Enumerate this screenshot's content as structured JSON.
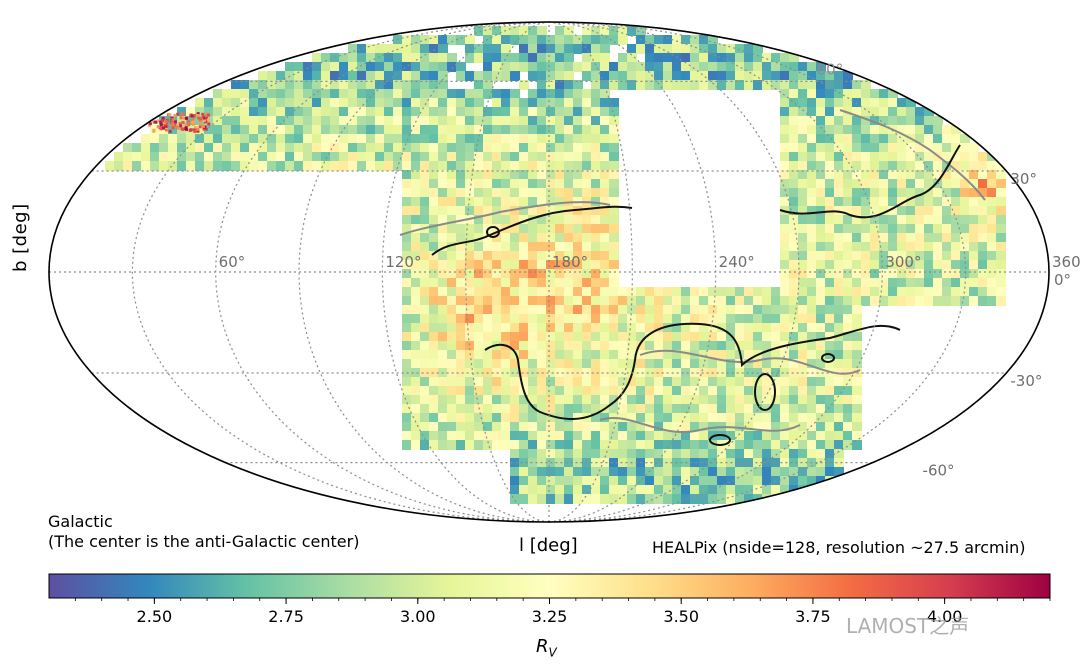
{
  "chart_data": {
    "type": "heatmap",
    "projection": "Mollweide (all-sky, Galactic coordinates)",
    "ylabel": "b [deg]",
    "xlabel": "l [deg]",
    "annotation_left": [
      "Galactic",
      "(The center is the anti-Galactic center)"
    ],
    "annotation_right": "HEALPix (nside=128, resolution ~27.5 arcmin)",
    "longitude_ticks": [
      "360°",
      "300°",
      "240°",
      "180°",
      "120°",
      "60°"
    ],
    "latitude_ticks": [
      "30°",
      "0°",
      "-30°",
      "-60°"
    ],
    "latitude_tick_labels_partial": [
      "60°"
    ],
    "colorbar": {
      "label": "R",
      "label_sub": "V",
      "range": [
        2.3,
        4.2
      ],
      "ticks": [
        "2.50",
        "2.75",
        "3.00",
        "3.25",
        "3.50",
        "3.75",
        "4.00"
      ],
      "tick_values": [
        2.5,
        2.75,
        3.0,
        3.25,
        3.5,
        3.75,
        4.0
      ],
      "colormap": "Spectral_r",
      "colors": [
        "#5e4fa2",
        "#3288bd",
        "#66c2a5",
        "#abdda4",
        "#e6f598",
        "#ffffbf",
        "#fee08b",
        "#fdae61",
        "#f46d43",
        "#d53e4f",
        "#9e0142"
      ]
    },
    "grid": true
  },
  "watermark": "LAMOST之声"
}
